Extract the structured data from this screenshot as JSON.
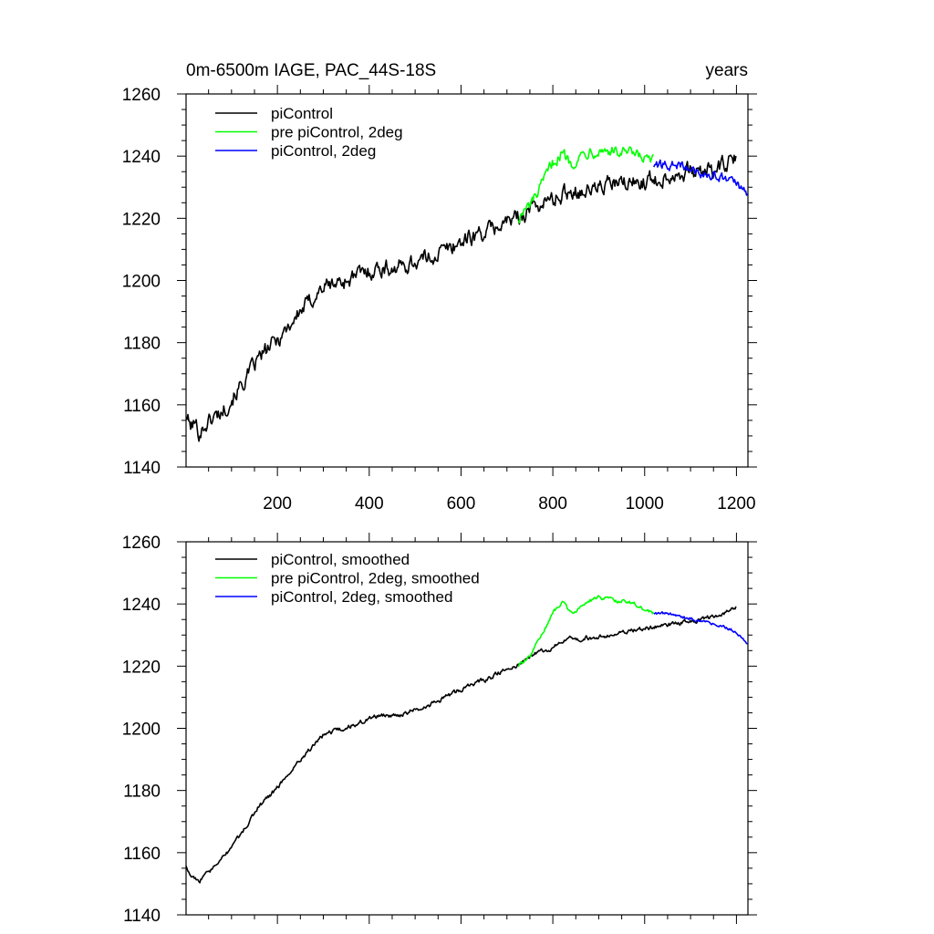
{
  "title_left": "0m-6500m IAGE, PAC_44S-18S",
  "title_right": "years",
  "colors": {
    "black": "#000000",
    "green": "#00ff00",
    "blue": "#0000ff"
  },
  "chart_data": [
    {
      "type": "line",
      "title": "0m-6500m IAGE, PAC_44S-18S",
      "xlabel": "",
      "ylabel": "",
      "xlim": [
        1,
        1225
      ],
      "ylim": [
        1140,
        1260
      ],
      "x_ticks": [
        200,
        400,
        600,
        800,
        1000,
        1200
      ],
      "x_tick_labels": [
        "200",
        "400",
        "600",
        "800",
        "1000",
        "1200"
      ],
      "y_ticks": [
        1140,
        1160,
        1180,
        1200,
        1220,
        1240,
        1260
      ],
      "y_tick_labels": [
        "1140",
        "1160",
        "1180",
        "1200",
        "1220",
        "1240",
        "1260"
      ],
      "legend_position": "top-left",
      "series": [
        {
          "name": "piControl",
          "color": "#000000",
          "noise": 2.2,
          "x": [
            1,
            10,
            20,
            30,
            45,
            60,
            80,
            100,
            130,
            160,
            200,
            250,
            300,
            350,
            380,
            420,
            460,
            500,
            540,
            580,
            620,
            660,
            700,
            720,
            760,
            800,
            840,
            880,
            920,
            960,
            1000,
            1040,
            1080,
            1120,
            1160,
            1200
          ],
          "y": [
            1157,
            1153,
            1154,
            1151,
            1154,
            1156,
            1158,
            1162,
            1168,
            1175,
            1181,
            1190,
            1198,
            1200,
            1202,
            1204,
            1204,
            1206,
            1208,
            1211,
            1214,
            1216,
            1219,
            1220,
            1224,
            1226,
            1229,
            1229,
            1231,
            1231,
            1232,
            1233,
            1235,
            1235,
            1236,
            1239
          ]
        },
        {
          "name": "pre piControl, 2deg",
          "color": "#00ff00",
          "noise": 1.6,
          "x": [
            725,
            750,
            775,
            800,
            820,
            840,
            860,
            880,
            900,
            920,
            940,
            960,
            980,
            1000,
            1020
          ],
          "y": [
            1220,
            1224,
            1230,
            1238,
            1241,
            1238,
            1240,
            1242,
            1242,
            1242,
            1241,
            1241,
            1240,
            1239,
            1238
          ]
        },
        {
          "name": "piControl, 2deg",
          "color": "#0000ff",
          "noise": 1.2,
          "x": [
            1020,
            1050,
            1080,
            1110,
            1140,
            1170,
            1200,
            1225
          ],
          "y": [
            1237,
            1237,
            1237,
            1235,
            1234,
            1233,
            1231,
            1227
          ]
        }
      ]
    },
    {
      "type": "line",
      "title": "",
      "xlabel": "",
      "ylabel": "",
      "xlim": [
        1,
        1225
      ],
      "ylim": [
        1140,
        1260
      ],
      "x_ticks": [
        200,
        400,
        600,
        800,
        1000,
        1200
      ],
      "y_ticks": [
        1140,
        1160,
        1180,
        1200,
        1220,
        1240,
        1260
      ],
      "y_tick_labels": [
        "1140",
        "1160",
        "1180",
        "1200",
        "1220",
        "1240",
        "1260"
      ],
      "legend_position": "top-left",
      "series": [
        {
          "name": "piControl, smoothed",
          "color": "#000000",
          "noise": 0.6,
          "x": [
            1,
            10,
            20,
            30,
            45,
            60,
            80,
            100,
            130,
            160,
            200,
            250,
            300,
            350,
            380,
            420,
            460,
            500,
            540,
            580,
            620,
            660,
            700,
            720,
            760,
            800,
            840,
            880,
            920,
            960,
            1000,
            1040,
            1080,
            1120,
            1160,
            1200
          ],
          "y": [
            1156,
            1153,
            1152,
            1151,
            1153,
            1155,
            1158,
            1162,
            1168,
            1175,
            1181,
            1190,
            1198,
            1200,
            1202,
            1204,
            1204,
            1206,
            1208,
            1211,
            1214,
            1216,
            1219,
            1220,
            1224,
            1226,
            1229,
            1229,
            1230,
            1231,
            1232,
            1233,
            1234,
            1235,
            1236,
            1239
          ]
        },
        {
          "name": "pre piControl, 2deg, smoothed",
          "color": "#00ff00",
          "noise": 0.5,
          "x": [
            725,
            750,
            775,
            800,
            820,
            840,
            860,
            880,
            900,
            920,
            940,
            960,
            980,
            1000,
            1020
          ],
          "y": [
            1220,
            1223,
            1230,
            1237,
            1241,
            1237,
            1239,
            1241,
            1242,
            1242,
            1241,
            1241,
            1240,
            1238,
            1237
          ]
        },
        {
          "name": "piControl, 2deg, smoothed",
          "color": "#0000ff",
          "noise": 0.4,
          "x": [
            1020,
            1050,
            1080,
            1110,
            1140,
            1170,
            1200,
            1225
          ],
          "y": [
            1237,
            1237,
            1236,
            1235,
            1234,
            1233,
            1231,
            1227
          ]
        }
      ]
    }
  ]
}
